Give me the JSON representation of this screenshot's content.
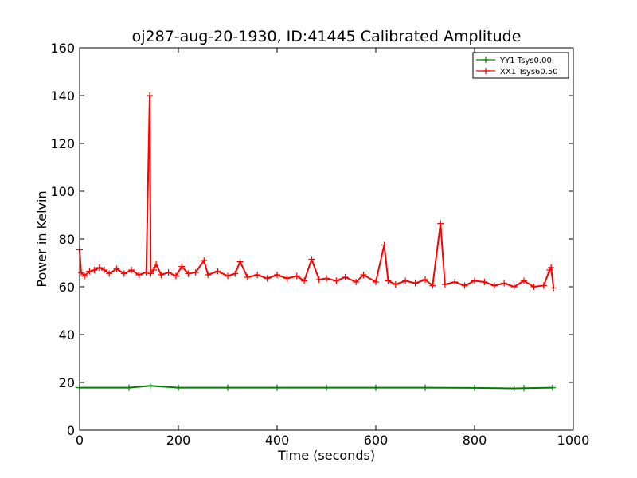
{
  "chart_data": {
    "type": "line",
    "title": "oj287-aug-20-1930, ID:41445 Calibrated Amplitude",
    "xlabel": "Time (seconds)",
    "ylabel": "Power in Kelvin",
    "xlim": [
      0,
      1000
    ],
    "ylim": [
      0,
      160
    ],
    "xticks": [
      0,
      200,
      400,
      600,
      800,
      1000
    ],
    "yticks": [
      0,
      20,
      40,
      60,
      80,
      100,
      120,
      140,
      160
    ],
    "grid": false,
    "legend_position": "top-right",
    "marker": "+",
    "series": [
      {
        "name": "YY1 Tsys0.00",
        "color": "#008000",
        "points": [
          [
            0,
            17.8
          ],
          [
            100,
            17.8
          ],
          [
            143,
            18.6
          ],
          [
            200,
            17.8
          ],
          [
            300,
            17.8
          ],
          [
            400,
            17.8
          ],
          [
            500,
            17.8
          ],
          [
            600,
            17.8
          ],
          [
            700,
            17.8
          ],
          [
            800,
            17.7
          ],
          [
            880,
            17.5
          ],
          [
            900,
            17.6
          ],
          [
            958,
            17.8
          ]
        ]
      },
      {
        "name": "XX1 Tsys60.50",
        "color": "#ff0000",
        "points": [
          [
            0,
            75.5
          ],
          [
            3,
            66
          ],
          [
            10,
            64.5
          ],
          [
            20,
            66.5
          ],
          [
            30,
            67
          ],
          [
            40,
            68
          ],
          [
            50,
            67
          ],
          [
            60,
            65.5
          ],
          [
            75,
            67.5
          ],
          [
            90,
            65.5
          ],
          [
            105,
            67
          ],
          [
            120,
            65
          ],
          [
            135,
            66
          ],
          [
            142,
            140
          ],
          [
            144,
            65.5
          ],
          [
            150,
            67
          ],
          [
            155,
            69.5
          ],
          [
            165,
            65
          ],
          [
            180,
            66
          ],
          [
            195,
            64.5
          ],
          [
            207,
            68.5
          ],
          [
            220,
            65.5
          ],
          [
            235,
            66
          ],
          [
            252,
            71
          ],
          [
            260,
            65
          ],
          [
            280,
            66.5
          ],
          [
            300,
            64.5
          ],
          [
            315,
            65.5
          ],
          [
            325,
            70.5
          ],
          [
            340,
            64
          ],
          [
            360,
            65
          ],
          [
            380,
            63.5
          ],
          [
            400,
            65
          ],
          [
            420,
            63.5
          ],
          [
            440,
            64.5
          ],
          [
            455,
            62.5
          ],
          [
            470,
            71.5
          ],
          [
            485,
            63
          ],
          [
            500,
            63.5
          ],
          [
            520,
            62.5
          ],
          [
            538,
            64
          ],
          [
            560,
            62
          ],
          [
            575,
            65
          ],
          [
            600,
            62
          ],
          [
            617,
            77.5
          ],
          [
            625,
            62.5
          ],
          [
            640,
            61
          ],
          [
            660,
            62.5
          ],
          [
            680,
            61.5
          ],
          [
            700,
            63
          ],
          [
            715,
            60.5
          ],
          [
            731,
            86.5
          ],
          [
            740,
            61
          ],
          [
            760,
            62
          ],
          [
            780,
            60.5
          ],
          [
            800,
            62.5
          ],
          [
            820,
            62
          ],
          [
            840,
            60.5
          ],
          [
            860,
            61.5
          ],
          [
            880,
            60
          ],
          [
            900,
            62.5
          ],
          [
            920,
            60
          ],
          [
            940,
            60.5
          ],
          [
            952,
            67
          ],
          [
            955,
            68
          ],
          [
            960,
            59.5
          ]
        ]
      }
    ]
  }
}
